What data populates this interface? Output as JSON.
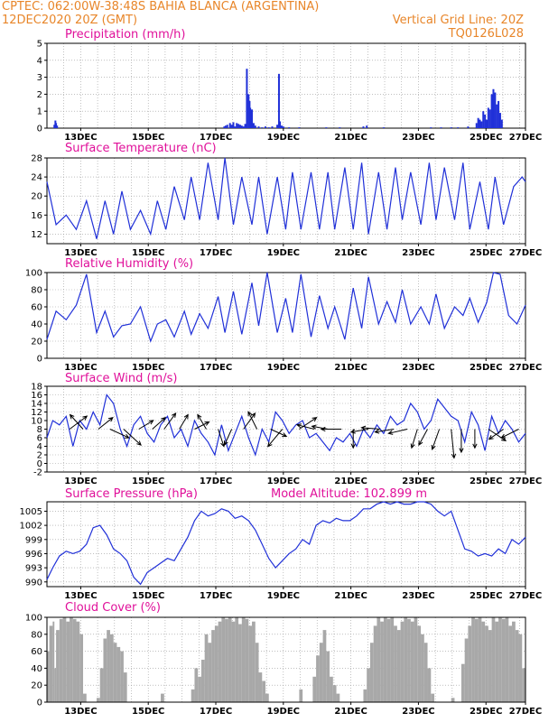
{
  "header": {
    "line1": "CPTEC:   062:00W-38:48S   BAHIA BLANCA (ARGENTINA)",
    "line2_left": "12DEC2020 20Z (GMT)",
    "line2_right": "Vertical Grid Line: 20Z",
    "line3_right": "TQ0126L028"
  },
  "colors": {
    "header": "#e8862a",
    "title": "#e0109a",
    "series": "#2030d8",
    "cloud": "#a8a8a8",
    "grid": "#999999",
    "arrow": "#000000"
  },
  "chart_data": [
    {
      "id": "precip",
      "type": "bar",
      "title": "Precipitation (mm/h)",
      "x_range_days": [
        12.83,
        27.0
      ],
      "ylim": [
        0,
        5
      ],
      "yticks": [
        "0",
        "1",
        "2",
        "3",
        "4",
        "5"
      ],
      "xticks": [
        "13DEC",
        "15DEC",
        "17DEC",
        "19DEC",
        "21DEC",
        "23DEC",
        "25DEC",
        "27DEC"
      ],
      "grid": true,
      "x": [
        13.05,
        13.08,
        13.1,
        13.13,
        18.08,
        18.12,
        18.17,
        18.25,
        18.3,
        18.35,
        18.4,
        18.45,
        18.5,
        18.55,
        18.6,
        18.65,
        18.7,
        18.75,
        18.8,
        18.83,
        18.85,
        18.88,
        18.9,
        18.95,
        19.0,
        19.1,
        19.2,
        19.3,
        19.4,
        19.5,
        19.65,
        19.7,
        19.73,
        19.78,
        19.83,
        20.0,
        20.3,
        21.1,
        21.5,
        22.2,
        22.3,
        22.8,
        24.2,
        24.5,
        24.8,
        25.0,
        25.3,
        25.55,
        25.6,
        25.65,
        25.7,
        25.75,
        25.8,
        25.85,
        25.9,
        25.95,
        26.0,
        26.05,
        26.1,
        26.15,
        26.2,
        26.25,
        26.3
      ],
      "values": [
        0.2,
        0.45,
        0.3,
        0.15,
        0.1,
        0.15,
        0.2,
        0.3,
        0.2,
        0.35,
        0.1,
        0.3,
        0.25,
        0.2,
        0.15,
        0.1,
        0.25,
        3.5,
        2.0,
        1.6,
        1.2,
        1.0,
        1.1,
        0.3,
        0.15,
        0.1,
        0.05,
        0.1,
        0.05,
        0.1,
        0.2,
        3.2,
        0.4,
        0.15,
        0.1,
        0.05,
        0.05,
        0.05,
        0.05,
        0.1,
        0.15,
        0.05,
        0.05,
        0.05,
        0.05,
        0.05,
        0.1,
        0.3,
        0.6,
        0.5,
        0.4,
        1.0,
        0.8,
        0.5,
        1.2,
        1.1,
        2.0,
        2.3,
        2.1,
        1.4,
        1.6,
        0.9,
        0.5
      ]
    },
    {
      "id": "temp",
      "type": "line",
      "title": "Surface Temperature (nC)",
      "x_range_days": [
        12.83,
        27.0
      ],
      "ylim": [
        10,
        28
      ],
      "yticks": [
        "12",
        "16",
        "20",
        "24",
        "28"
      ],
      "xticks": [
        "13DEC",
        "15DEC",
        "17DEC",
        "19DEC",
        "21DEC",
        "23DEC",
        "25DEC",
        "27DEC"
      ],
      "grid": true,
      "x": [
        12.83,
        13.1,
        13.4,
        13.7,
        14.0,
        14.3,
        14.55,
        14.8,
        15.05,
        15.3,
        15.6,
        15.9,
        16.1,
        16.35,
        16.6,
        16.9,
        17.1,
        17.35,
        17.6,
        17.9,
        18.1,
        18.35,
        18.6,
        18.9,
        19.1,
        19.35,
        19.65,
        19.9,
        20.1,
        20.35,
        20.65,
        20.9,
        21.15,
        21.35,
        21.65,
        21.9,
        22.15,
        22.35,
        22.65,
        22.9,
        23.15,
        23.35,
        23.6,
        23.9,
        24.15,
        24.35,
        24.6,
        24.9,
        25.15,
        25.35,
        25.65,
        25.9,
        26.1,
        26.35,
        26.65,
        26.9,
        27.0
      ],
      "values": [
        23,
        14,
        16,
        13,
        19,
        11,
        19,
        12,
        21,
        13,
        17,
        12,
        19,
        13,
        22,
        15,
        24,
        15,
        27,
        15,
        28,
        14,
        24,
        14,
        24,
        12,
        24,
        13,
        25,
        13,
        25,
        13,
        25,
        13,
        26,
        13,
        27,
        12,
        25,
        13,
        26,
        15,
        25,
        14,
        27,
        15,
        26,
        15,
        27,
        13,
        23,
        13,
        24,
        14,
        22,
        24,
        23
      ]
    },
    {
      "id": "rh",
      "type": "line",
      "title": "Relative Humidity (%)",
      "x_range_days": [
        12.83,
        27.0
      ],
      "ylim": [
        0,
        100
      ],
      "yticks": [
        "0",
        "20",
        "40",
        "60",
        "80",
        "100"
      ],
      "xticks": [
        "13DEC",
        "15DEC",
        "17DEC",
        "19DEC",
        "21DEC",
        "23DEC",
        "25DEC",
        "27DEC"
      ],
      "grid": true,
      "x": [
        12.83,
        13.1,
        13.4,
        13.7,
        14.0,
        14.3,
        14.55,
        14.8,
        15.05,
        15.3,
        15.6,
        15.9,
        16.1,
        16.35,
        16.6,
        16.9,
        17.1,
        17.35,
        17.6,
        17.9,
        18.1,
        18.35,
        18.6,
        18.9,
        19.1,
        19.35,
        19.65,
        19.9,
        20.1,
        20.35,
        20.65,
        20.9,
        21.15,
        21.35,
        21.65,
        21.9,
        22.15,
        22.35,
        22.65,
        22.9,
        23.15,
        23.35,
        23.6,
        23.9,
        24.15,
        24.35,
        24.6,
        24.9,
        25.15,
        25.35,
        25.6,
        25.85,
        26.05,
        26.25,
        26.5,
        26.75,
        27.0
      ],
      "values": [
        22,
        55,
        45,
        62,
        98,
        30,
        55,
        25,
        38,
        40,
        60,
        20,
        40,
        45,
        25,
        55,
        28,
        52,
        35,
        72,
        30,
        78,
        28,
        88,
        38,
        100,
        30,
        70,
        30,
        98,
        25,
        73,
        35,
        60,
        22,
        82,
        35,
        95,
        40,
        66,
        42,
        80,
        40,
        60,
        40,
        75,
        35,
        60,
        50,
        70,
        42,
        65,
        100,
        98,
        50,
        40,
        62
      ]
    },
    {
      "id": "wind",
      "type": "line",
      "title": "Surface Wind (m/s)",
      "x_range_days": [
        12.83,
        27.0
      ],
      "ylim": [
        -2,
        18
      ],
      "yticks": [
        "-2",
        "0",
        "2",
        "4",
        "6",
        "8",
        "10",
        "12",
        "14",
        "16",
        "18"
      ],
      "xticks": [
        "13DEC",
        "15DEC",
        "17DEC",
        "19DEC",
        "21DEC",
        "23DEC",
        "25DEC",
        "27DEC"
      ],
      "grid": true,
      "x": [
        12.83,
        13.0,
        13.2,
        13.4,
        13.6,
        13.8,
        14.0,
        14.2,
        14.4,
        14.6,
        14.8,
        15.0,
        15.2,
        15.4,
        15.6,
        15.8,
        16.0,
        16.2,
        16.4,
        16.6,
        16.8,
        17.0,
        17.2,
        17.4,
        17.6,
        17.8,
        18.0,
        18.2,
        18.4,
        18.6,
        18.8,
        19.0,
        19.2,
        19.4,
        19.6,
        19.8,
        20.0,
        20.2,
        20.4,
        20.6,
        20.8,
        21.0,
        21.2,
        21.4,
        21.6,
        21.8,
        22.0,
        22.2,
        22.4,
        22.6,
        22.8,
        23.0,
        23.2,
        23.4,
        23.6,
        23.8,
        24.0,
        24.2,
        24.4,
        24.6,
        24.8,
        25.0,
        25.2,
        25.4,
        25.6,
        25.8,
        26.0,
        26.2,
        26.4,
        26.6,
        26.8,
        27.0
      ],
      "values": [
        6,
        10,
        9,
        11,
        4,
        10,
        8,
        12,
        9,
        16,
        14,
        8,
        4,
        9,
        11,
        7,
        5,
        9,
        11,
        6,
        8,
        4,
        10,
        7,
        5,
        2,
        9,
        3,
        7,
        11,
        6,
        2,
        8,
        5,
        12,
        10,
        7,
        9,
        10,
        6,
        7,
        5,
        3,
        6,
        5,
        7,
        4,
        8,
        6,
        9,
        7,
        11,
        9,
        10,
        14,
        12,
        8,
        10,
        15,
        13,
        11,
        10,
        5,
        12,
        9,
        3,
        11,
        7,
        10,
        8,
        5,
        7
      ]
    }
  ],
  "wind_arrows": [
    {
      "x": 13.5,
      "u": 1.2,
      "v": 0.9
    },
    {
      "x": 13.9,
      "u": -0.9,
      "v": 1.0
    },
    {
      "x": 14.35,
      "u": 1.0,
      "v": 0.8
    },
    {
      "x": 14.7,
      "u": 1.3,
      "v": -0.6
    },
    {
      "x": 15.1,
      "u": 1.2,
      "v": -1.1
    },
    {
      "x": 15.55,
      "u": 1.0,
      "v": 0.6
    },
    {
      "x": 15.95,
      "u": 0.9,
      "v": 0.8
    },
    {
      "x": 16.3,
      "u": 0.8,
      "v": 1.1
    },
    {
      "x": 16.75,
      "u": 0.6,
      "v": 1.0
    },
    {
      "x": 17.2,
      "u": 1.0,
      "v": 0.5
    },
    {
      "x": 17.55,
      "u": -0.6,
      "v": 1.0
    },
    {
      "x": 17.9,
      "u": 0.4,
      "v": -1.2
    },
    {
      "x": 18.3,
      "u": -0.5,
      "v": -1.1
    },
    {
      "x": 18.65,
      "u": 0.8,
      "v": 1.1
    },
    {
      "x": 19.05,
      "u": -0.6,
      "v": 1.2
    },
    {
      "x": 19.45,
      "u": 1.1,
      "v": -0.5
    },
    {
      "x": 19.8,
      "u": -1.0,
      "v": -1.2
    },
    {
      "x": 20.3,
      "u": 1.2,
      "v": 0.8
    },
    {
      "x": 20.75,
      "u": -1.2,
      "v": 0.3
    },
    {
      "x": 21.15,
      "u": -1.1,
      "v": 0.2
    },
    {
      "x": 21.55,
      "u": -1.4,
      "v": 0.0
    },
    {
      "x": 21.9,
      "u": 0.0,
      "v": -1.3
    },
    {
      "x": 22.35,
      "u": -1.2,
      "v": -0.2
    },
    {
      "x": 22.7,
      "u": -1.3,
      "v": 0.1
    },
    {
      "x": 23.1,
      "u": -1.3,
      "v": -0.2
    },
    {
      "x": 23.5,
      "u": -1.3,
      "v": -0.3
    },
    {
      "x": 23.8,
      "u": -0.4,
      "v": -1.3
    },
    {
      "x": 24.1,
      "u": -0.6,
      "v": -1.1
    },
    {
      "x": 24.45,
      "u": -0.5,
      "v": -1.4
    },
    {
      "x": 24.8,
      "u": 0.2,
      "v": -2.0
    },
    {
      "x": 25.1,
      "u": 0.0,
      "v": -1.6
    },
    {
      "x": 25.5,
      "u": 0.0,
      "v": -1.3
    },
    {
      "x": 25.9,
      "u": 1.2,
      "v": -0.8
    },
    {
      "x": 26.35,
      "u": -1.0,
      "v": -0.7
    },
    {
      "x": 26.8,
      "u": -1.2,
      "v": -0.6
    }
  ],
  "pressure_chart": {
    "type": "line",
    "title": "Surface Pressure (hPa)",
    "subtitle": "Model Altitude: 102.899 m",
    "x_range_days": [
      12.83,
      27.0
    ],
    "ylim": [
      989,
      1007
    ],
    "ytick_values": [
      990,
      993,
      996,
      999,
      1002,
      1005
    ],
    "yticks": [
      "990",
      "993",
      "996",
      "999",
      "1002",
      "1005"
    ],
    "xticks": [
      "13DEC",
      "15DEC",
      "17DEC",
      "19DEC",
      "21DEC",
      "23DEC",
      "25DEC",
      "27DEC"
    ],
    "x": [
      12.83,
      13.0,
      13.2,
      13.4,
      13.6,
      13.8,
      14.0,
      14.2,
      14.4,
      14.6,
      14.8,
      15.0,
      15.2,
      15.4,
      15.6,
      15.8,
      16.0,
      16.2,
      16.4,
      16.6,
      16.8,
      17.0,
      17.2,
      17.4,
      17.6,
      17.8,
      18.0,
      18.2,
      18.4,
      18.6,
      18.8,
      19.0,
      19.2,
      19.4,
      19.6,
      19.8,
      20.0,
      20.2,
      20.4,
      20.6,
      20.8,
      21.0,
      21.2,
      21.4,
      21.6,
      21.8,
      22.0,
      22.2,
      22.4,
      22.6,
      22.8,
      23.0,
      23.2,
      23.4,
      23.6,
      23.8,
      24.0,
      24.2,
      24.4,
      24.6,
      24.8,
      25.0,
      25.2,
      25.4,
      25.6,
      25.8,
      26.0,
      26.2,
      26.4,
      26.6,
      26.8,
      27.0
    ],
    "values": [
      990.5,
      993,
      995.5,
      996.5,
      996,
      996.5,
      998,
      1001.5,
      1002,
      1000,
      997,
      996,
      994.5,
      991,
      989.5,
      992,
      993,
      994,
      995,
      994.5,
      997,
      999.5,
      1003,
      1005,
      1004,
      1004.5,
      1005.5,
      1005,
      1003.5,
      1004,
      1003,
      1001,
      998,
      995,
      993,
      994.5,
      996,
      997,
      999,
      998,
      1002,
      1003,
      1002.5,
      1003.5,
      1003,
      1003,
      1004,
      1005.5,
      1005.5,
      1006.5,
      1007,
      1006.5,
      1007,
      1006.5,
      1006.5,
      1007,
      1007,
      1006.5,
      1005,
      1004,
      1005,
      1001,
      997,
      996.5,
      995.5,
      996,
      995.5,
      997,
      996,
      999,
      998,
      999.5
    ]
  },
  "cloud_chart": {
    "type": "area",
    "title": "Cloud Cover (%)",
    "x_range_days": [
      12.83,
      27.0
    ],
    "ylim": [
      0,
      100
    ],
    "yticks": [
      "0",
      "20",
      "40",
      "60",
      "80",
      "100"
    ],
    "xticks": [
      "13DEC",
      "15DEC",
      "17DEC",
      "19DEC",
      "21DEC",
      "23DEC",
      "25DEC",
      "27DEC"
    ],
    "x": [
      12.83,
      12.9,
      13.0,
      13.05,
      13.1,
      13.2,
      13.3,
      13.4,
      13.5,
      13.6,
      13.7,
      13.8,
      13.9,
      14.0,
      14.1,
      14.2,
      14.3,
      14.4,
      14.5,
      14.6,
      14.7,
      14.8,
      14.9,
      15.0,
      15.1,
      15.2,
      15.3,
      15.4,
      15.5,
      15.6,
      15.7,
      16.0,
      16.1,
      16.2,
      16.3,
      16.5,
      16.7,
      16.8,
      16.9,
      17.0,
      17.1,
      17.2,
      17.3,
      17.4,
      17.5,
      17.6,
      17.7,
      17.8,
      17.9,
      18.0,
      18.1,
      18.2,
      18.3,
      18.4,
      18.5,
      18.6,
      18.7,
      18.8,
      18.9,
      19.0,
      19.1,
      19.2,
      19.3,
      19.4,
      19.5,
      19.6,
      19.7,
      19.8,
      19.9,
      20.0,
      20.1,
      20.2,
      20.3,
      20.4,
      20.5,
      20.6,
      20.7,
      20.8,
      20.9,
      21.0,
      21.1,
      21.2,
      21.3,
      21.4,
      21.5,
      21.6,
      21.7,
      21.8,
      21.9,
      22.0,
      22.1,
      22.2,
      22.3,
      22.4,
      22.5,
      22.6,
      22.7,
      22.8,
      22.9,
      23.0,
      23.1,
      23.2,
      23.3,
      23.4,
      23.5,
      23.6,
      23.7,
      23.8,
      23.9,
      24.0,
      24.1,
      24.2,
      24.3,
      24.4,
      24.5,
      24.6,
      24.7,
      24.8,
      24.9,
      25.0,
      25.1,
      25.2,
      25.3,
      25.4,
      25.5,
      25.6,
      25.7,
      25.8,
      25.9,
      26.0,
      26.1,
      26.2,
      26.3,
      26.4,
      26.5,
      26.6,
      26.7,
      26.8,
      26.9,
      27.0
    ],
    "values": [
      60,
      90,
      95,
      40,
      85,
      98,
      100,
      95,
      100,
      98,
      95,
      80,
      10,
      0,
      0,
      0,
      5,
      40,
      75,
      85,
      80,
      70,
      65,
      60,
      35,
      0,
      0,
      0,
      0,
      0,
      0,
      0,
      0,
      10,
      0,
      0,
      0,
      0,
      0,
      0,
      15,
      40,
      30,
      50,
      80,
      70,
      85,
      90,
      95,
      100,
      98,
      100,
      95,
      100,
      92,
      100,
      98,
      90,
      95,
      70,
      35,
      25,
      10,
      0,
      0,
      0,
      0,
      0,
      0,
      0,
      0,
      0,
      15,
      0,
      0,
      0,
      30,
      55,
      70,
      85,
      60,
      30,
      20,
      10,
      0,
      0,
      0,
      0,
      0,
      0,
      0,
      15,
      40,
      70,
      90,
      100,
      95,
      100,
      98,
      100,
      90,
      85,
      95,
      100,
      98,
      95,
      100,
      90,
      80,
      70,
      40,
      10,
      0,
      0,
      0,
      0,
      0,
      5,
      0,
      0,
      45,
      75,
      90,
      100,
      98,
      100,
      95,
      90,
      85,
      100,
      95,
      100,
      98,
      100,
      90,
      95,
      85,
      80,
      40,
      0
    ]
  }
}
